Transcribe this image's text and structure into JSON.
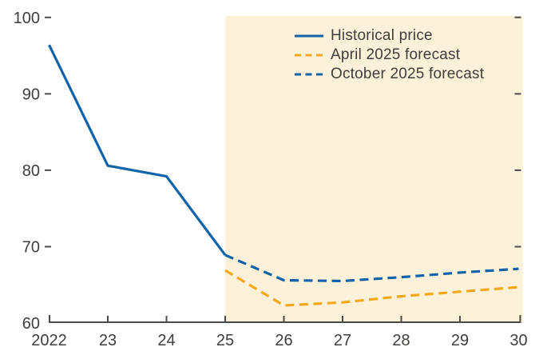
{
  "chart_data": {
    "type": "line",
    "title": "",
    "xlabel": "",
    "ylabel": "",
    "xlim": [
      2022,
      2030
    ],
    "ylim": [
      60,
      100
    ],
    "grid": false,
    "legend_position": "top-right-inside",
    "y_ticks": [
      60,
      70,
      80,
      90,
      100
    ],
    "x_ticks": [
      2022,
      2023,
      2024,
      2025,
      2026,
      2027,
      2028,
      2029,
      2030
    ],
    "x_tick_labels": [
      "2022",
      "23",
      "24",
      "25",
      "26",
      "27",
      "28",
      "29",
      "30"
    ],
    "forecast_band": {
      "from": 2025,
      "to": 2030.04,
      "color": "#fdf2d9"
    },
    "series": [
      {
        "name": "Historical price",
        "color": "#1063a8",
        "line_style": "solid",
        "x": [
          2022,
          2023,
          2024,
          2025
        ],
        "values": [
          96.4,
          80.6,
          79.2,
          68.9
        ]
      },
      {
        "name": "April 2025 forecast",
        "color": "#f5a81b",
        "line_style": "dashed",
        "x": [
          2025,
          2026,
          2027,
          2028,
          2029,
          2030
        ],
        "values": [
          66.9,
          62.3,
          62.7,
          63.5,
          64.1,
          64.7
        ]
      },
      {
        "name": "October 2025 forecast",
        "color": "#1063a8",
        "line_style": "dashed",
        "x": [
          2025,
          2026,
          2027,
          2028,
          2029,
          2030
        ],
        "values": [
          68.9,
          65.6,
          65.5,
          66.0,
          66.6,
          67.1
        ]
      }
    ]
  },
  "colors": {
    "background": "#ffffff",
    "band": "#fdf2d9",
    "axis": "#4a4a48",
    "text": "#3e3e3c",
    "blue": "#1063a8",
    "yellow": "#f5a81b"
  }
}
